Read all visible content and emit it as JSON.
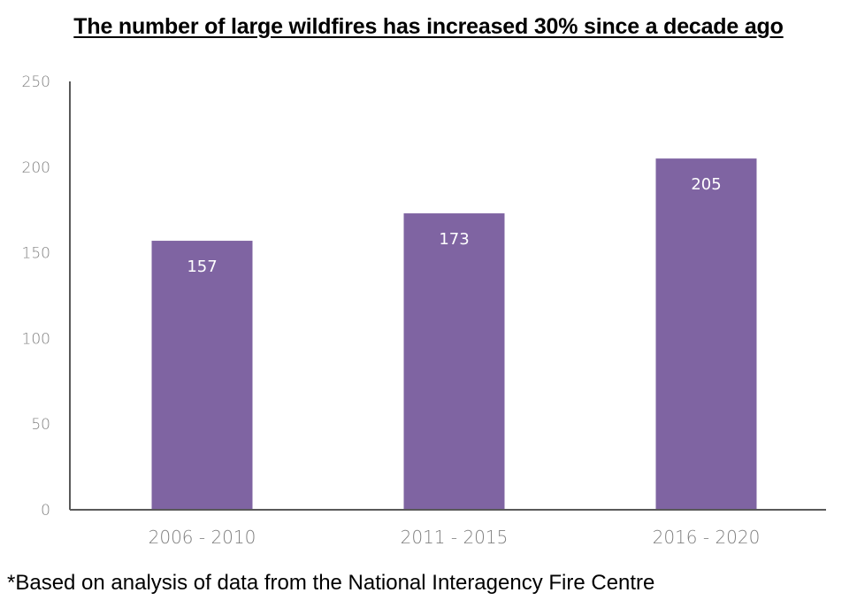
{
  "chart_data": {
    "type": "bar",
    "title": "The number of large wildfires has increased 30% since a decade ago",
    "categories": [
      "2006 - 2010",
      "2011 - 2015",
      "2016 - 2020"
    ],
    "values": [
      157,
      173,
      205
    ],
    "data_labels": [
      "157",
      "173",
      "205"
    ],
    "y_ticks": [
      0,
      50,
      100,
      150,
      200,
      250
    ],
    "ylim": [
      0,
      250
    ],
    "xlabel": "",
    "ylabel": "",
    "grid": false,
    "legend": "none",
    "bar_color": "#7f64a2",
    "axis_color": "#595959",
    "tick_label_color": "#7f7f7f",
    "label_color": "#ffffff"
  },
  "footnote": "*Based on analysis of data from the National Interagency Fire Centre"
}
